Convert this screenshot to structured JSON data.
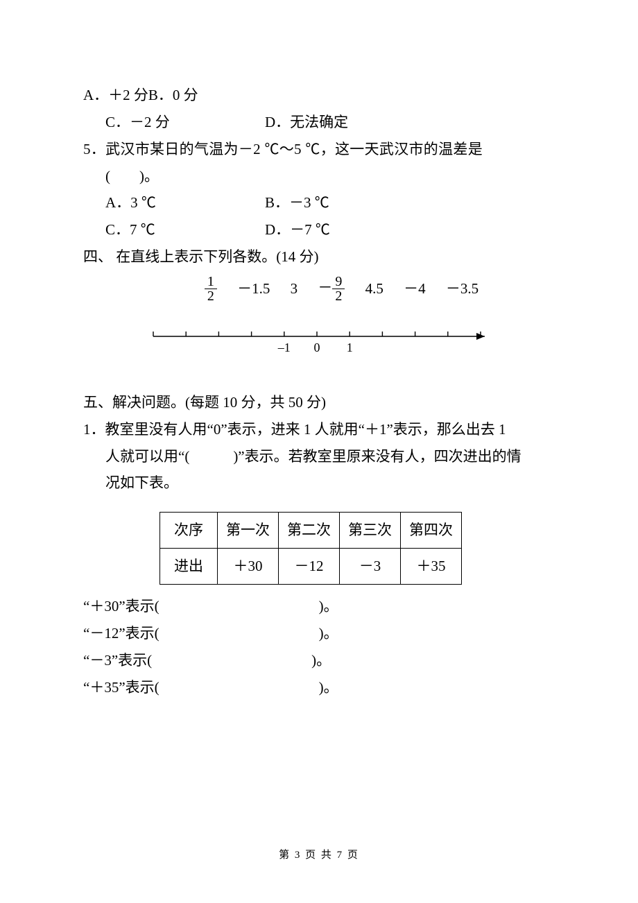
{
  "q4_options": {
    "ab_line": "A．＋2 分B．0 分",
    "c": "C．－2 分",
    "d": "D．无法确定"
  },
  "q5": {
    "stem_l1": "5．武汉市某日的气温为－2 ℃～5 ℃，这一天武汉市的温差是",
    "stem_l2": "(　　)。",
    "a": "A．3 ℃",
    "b": "B．－3 ℃",
    "c": "C．7 ℃",
    "d": "D．－7 ℃"
  },
  "sec4": {
    "heading": "四、 在直线上表示下列各数。(14 分)",
    "numbers": {
      "n1_num": "1",
      "n1_den": "2",
      "n2": "－1.5",
      "n3": "3",
      "n4_sign": "－",
      "n4_num": "9",
      "n4_den": "2",
      "n5": "4.5",
      "n6": "－4",
      "n7": "－3.5"
    },
    "axis": {
      "ticks": [
        -5,
        -4,
        -3,
        -2,
        -1,
        0,
        1,
        2,
        3,
        4,
        5
      ],
      "labels": {
        "-1": "–1",
        "0": "0",
        "1": "1"
      },
      "stroke": "#000000",
      "label_fontsize": 18
    }
  },
  "sec5": {
    "heading": "五、解决问题。(每题 10 分，共 50 分)",
    "q1_l1": "1．教室里没有人用“0”表示，进来 1 人就用“＋1”表示，那么出去 1",
    "q1_l2": "人就可以用“(　　　)”表示。若教室里原来没有人，四次进出的情",
    "q1_l3": "况如下表。",
    "table": {
      "head": [
        "次序",
        "第一次",
        "第二次",
        "第三次",
        "第四次"
      ],
      "row": [
        "进出",
        "＋30",
        "－12",
        "－3",
        "＋35"
      ]
    },
    "fills": [
      {
        "label": "“＋30”表示(",
        "tail": ")。"
      },
      {
        "label": "“－12”表示(",
        "tail": ")。"
      },
      {
        "label": "“－3”表示(",
        "tail": ")。"
      },
      {
        "label": "“＋35”表示(",
        "tail": ")。"
      }
    ]
  },
  "footer": "第 3 页 共 7 页"
}
